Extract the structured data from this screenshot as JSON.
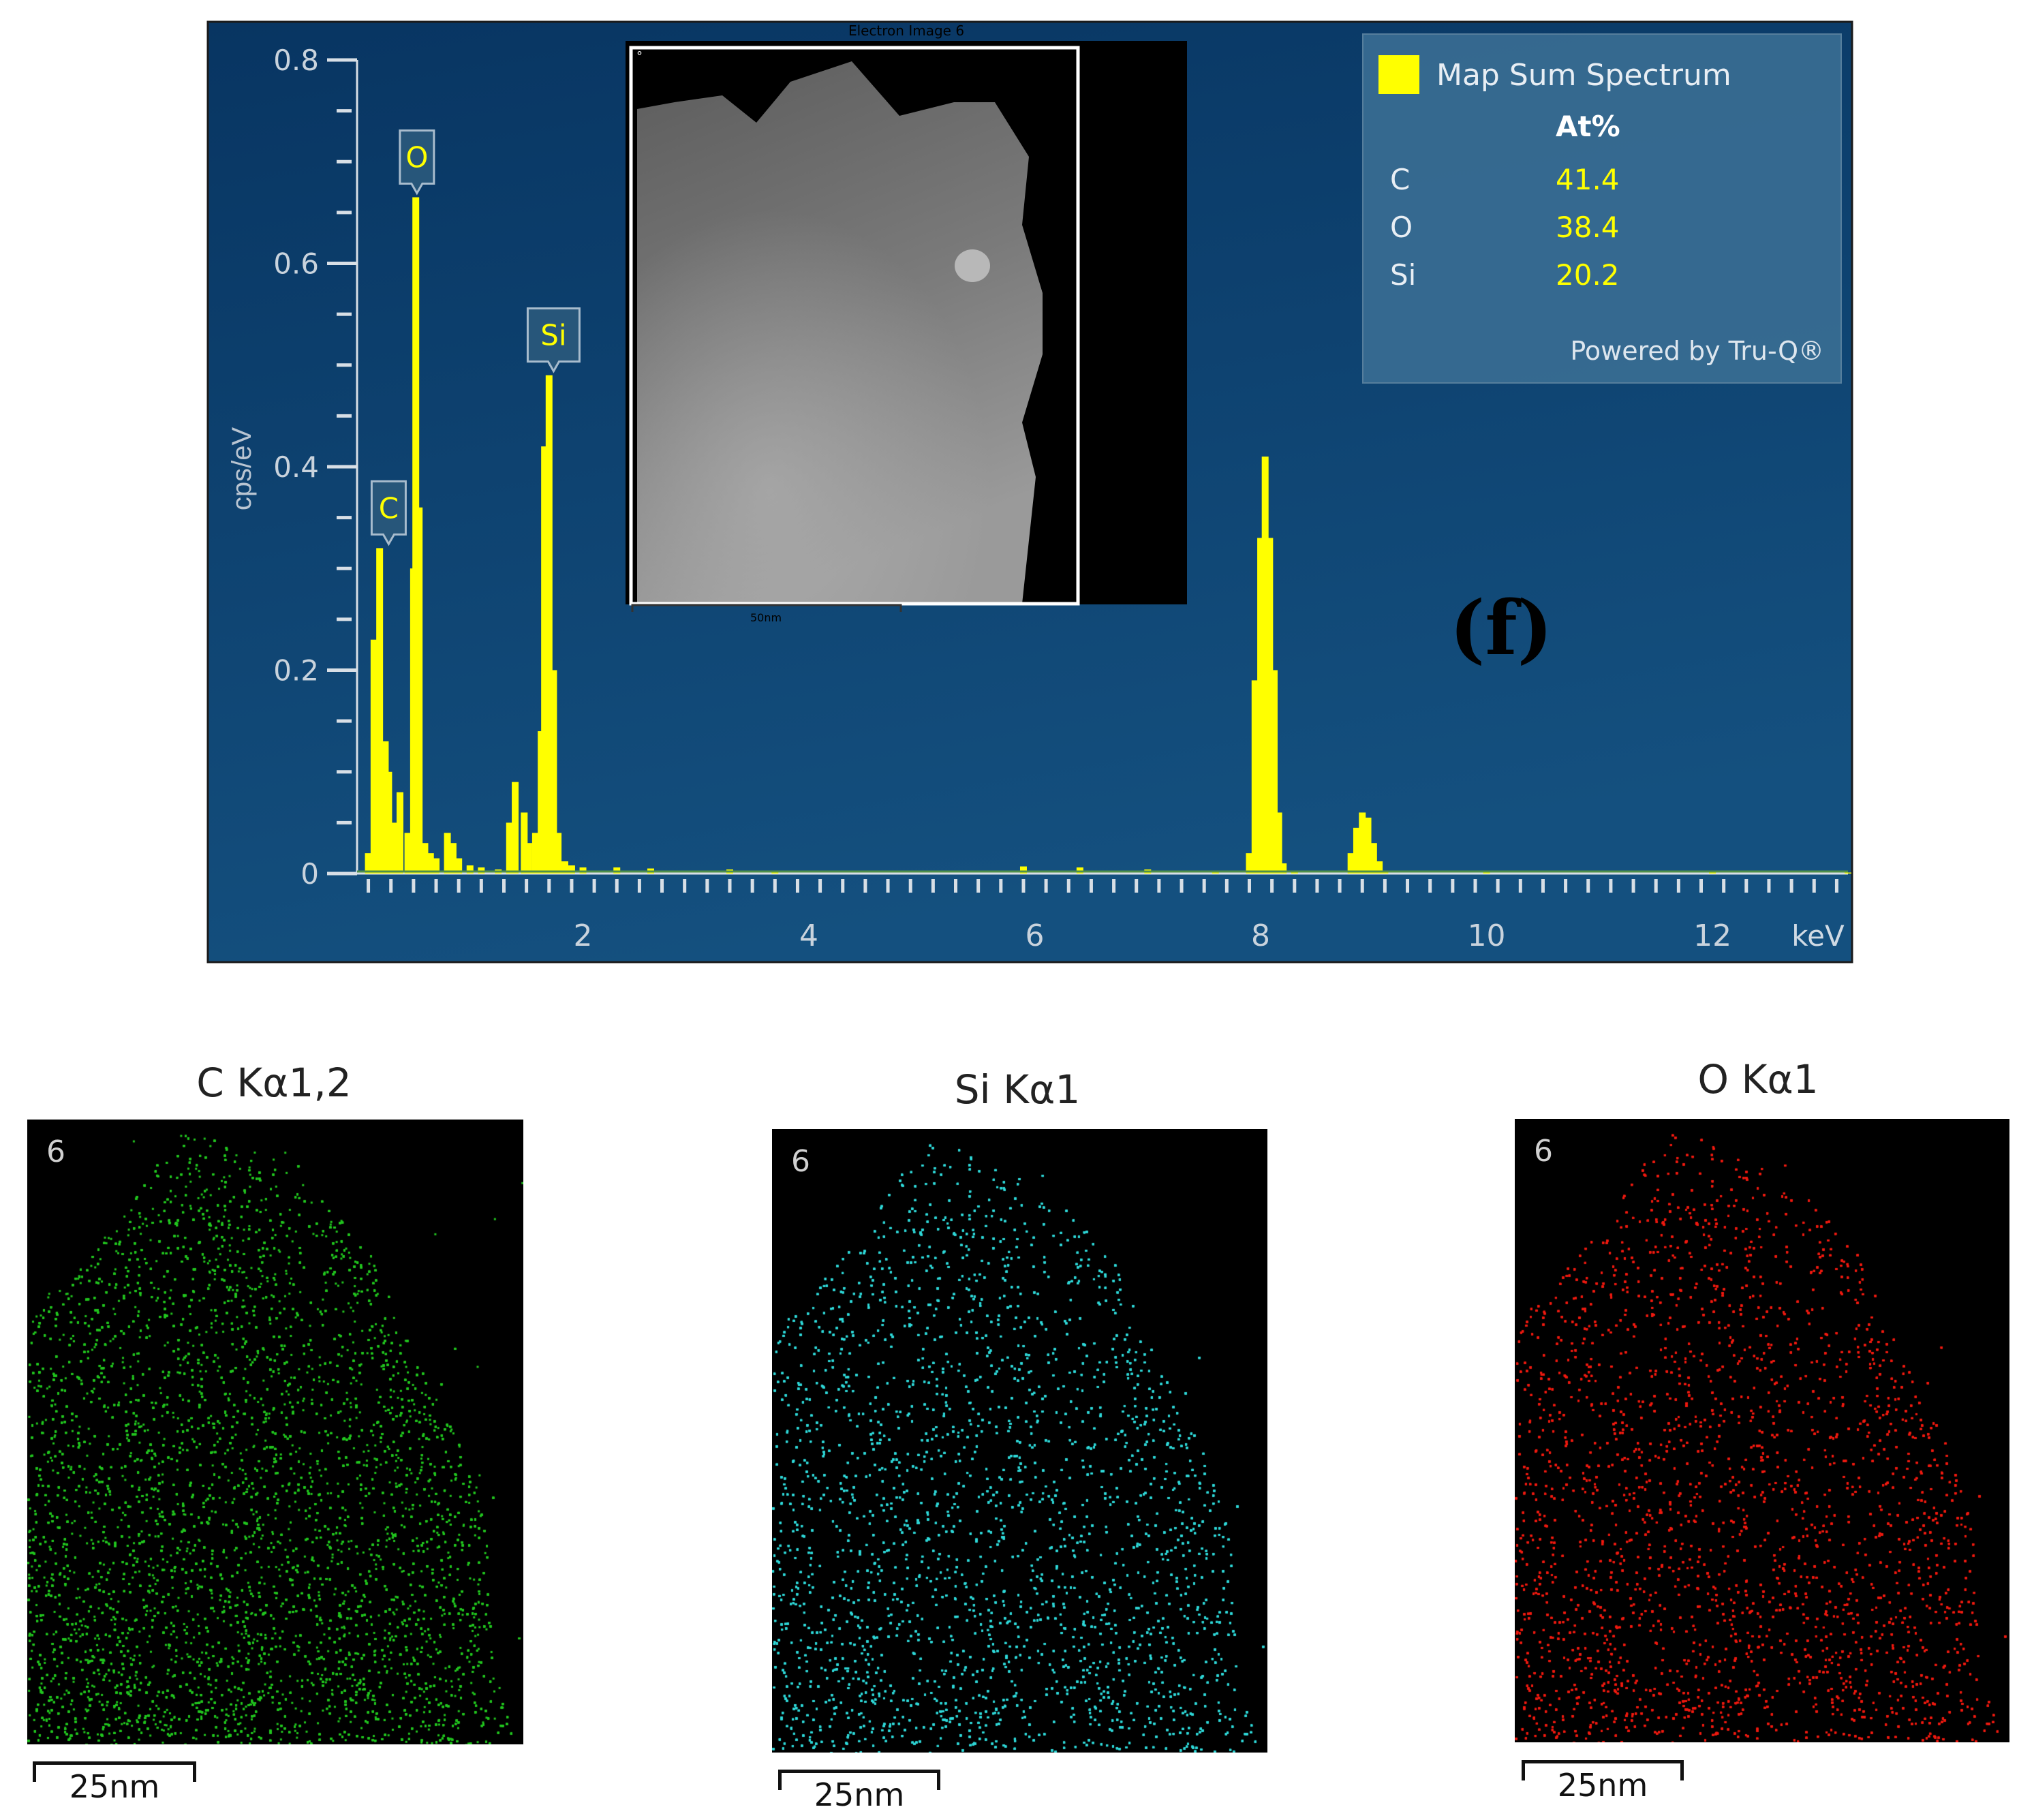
{
  "chart_data": {
    "type": "bar",
    "title": "",
    "xlabel": "keV",
    "ylabel": "cps/eV",
    "xlim": [
      0,
      13.2
    ],
    "ylim": [
      0,
      0.8
    ],
    "x_ticks": [
      2,
      4,
      6,
      8,
      10,
      12
    ],
    "y_ticks": [
      0,
      0.2,
      0.4,
      0.6,
      0.8
    ],
    "y_tick_labels": [
      "0",
      "0.2",
      "0.4",
      "0.6",
      "0.8"
    ],
    "grid": false,
    "series": [
      {
        "name": "Map Sum Spectrum",
        "color": "#ffff00",
        "x": [
          0.1,
          0.15,
          0.2,
          0.25,
          0.28,
          0.33,
          0.38,
          0.45,
          0.5,
          0.52,
          0.55,
          0.6,
          0.65,
          0.7,
          0.8,
          0.85,
          0.9,
          1.0,
          1.1,
          1.25,
          1.35,
          1.4,
          1.48,
          1.52,
          1.58,
          1.63,
          1.66,
          1.7,
          1.74,
          1.78,
          1.84,
          1.9,
          2.0,
          2.3,
          2.6,
          3.3,
          3.7,
          5.9,
          6.4,
          7.0,
          7.6,
          7.9,
          7.95,
          8.0,
          8.04,
          8.08,
          8.12,
          8.16,
          8.2,
          8.3,
          8.8,
          8.85,
          8.9,
          8.95,
          9.0,
          9.05,
          9.1,
          10.0,
          12.0,
          13.2
        ],
        "values": [
          0.02,
          0.23,
          0.32,
          0.13,
          0.1,
          0.05,
          0.08,
          0.04,
          0.3,
          0.665,
          0.36,
          0.03,
          0.02,
          0.015,
          0.04,
          0.03,
          0.015,
          0.008,
          0.006,
          0.004,
          0.05,
          0.09,
          0.06,
          0.03,
          0.04,
          0.14,
          0.42,
          0.49,
          0.2,
          0.04,
          0.012,
          0.008,
          0.006,
          0.006,
          0.005,
          0.004,
          0.003,
          0.007,
          0.006,
          0.004,
          0.003,
          0.02,
          0.19,
          0.33,
          0.41,
          0.33,
          0.2,
          0.06,
          0.01,
          0.003,
          0.02,
          0.045,
          0.06,
          0.055,
          0.03,
          0.012,
          0.002,
          0.001,
          0.001,
          0.001
        ]
      }
    ],
    "peak_labels": [
      {
        "label": "C",
        "x": 0.28,
        "y": 0.32
      },
      {
        "label": "O",
        "x": 0.53,
        "y": 0.665
      },
      {
        "label": "Si",
        "x": 1.74,
        "y": 0.49
      }
    ],
    "legend": {
      "placement": "top-right",
      "series_label": "Map Sum Spectrum",
      "column_header": "At%",
      "rows": [
        {
          "element": "C",
          "value": "41.4"
        },
        {
          "element": "O",
          "value": "38.4"
        },
        {
          "element": "Si",
          "value": "20.2"
        }
      ],
      "footer": "Powered by Tru-Q®"
    },
    "inset": {
      "title": "Electron Image 6",
      "scale_label": "50nm",
      "corner_mark": "°"
    },
    "panel_label": "(f)",
    "colors": {
      "background_top": "#083562",
      "background_bottom": "#14507f",
      "axis": "#d8dfe6",
      "spectrum": "#ffff00"
    }
  },
  "maps": [
    {
      "title": "C Kα1,2",
      "frame": "6",
      "color": "#22c51f",
      "scale_label": "25nm"
    },
    {
      "title": "Si Kα1",
      "frame": "6",
      "color": "#2fd8d8",
      "scale_label": "25nm"
    },
    {
      "title": "O Kα1",
      "frame": "6",
      "color": "#ee1a10",
      "scale_label": "25nm"
    }
  ]
}
